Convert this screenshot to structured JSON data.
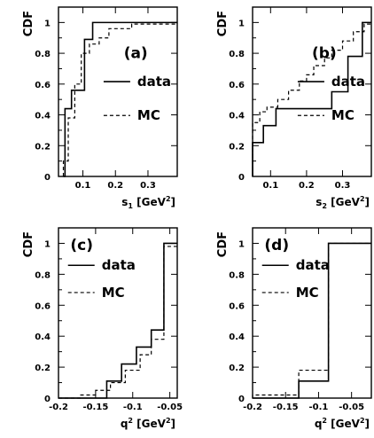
{
  "chart_data": [
    {
      "type": "line",
      "panel_label": "(a)",
      "ylabel": "CDF",
      "xlabel": "s",
      "xlabel_sub": "1",
      "xlabel_unit": "[GeV",
      "xlabel_sup": "2",
      "xlabel_close": "]",
      "xlim": [
        0.025,
        0.39
      ],
      "ylim": [
        0,
        1.1
      ],
      "xticks": [
        0.1,
        0.2,
        0.3
      ],
      "xtick_labels": [
        "0.1",
        "0.2",
        "0.3"
      ],
      "yticks": [
        0,
        0.2,
        0.4,
        0.6,
        0.8,
        1
      ],
      "ytick_labels": [
        "0",
        "0.2",
        "0.4",
        "0.6",
        "0.8",
        "1"
      ],
      "legend_position": "middle-right",
      "series": [
        {
          "name": "data",
          "style": "solid",
          "x": [
            0.04,
            0.045,
            0.065,
            0.105,
            0.13,
            0.39
          ],
          "y": [
            0,
            0.44,
            0.56,
            0.89,
            1,
            1
          ]
        },
        {
          "name": "MC",
          "style": "dashed",
          "x": [
            0.04,
            0.055,
            0.075,
            0.095,
            0.12,
            0.15,
            0.18,
            0.25,
            0.39
          ],
          "y": [
            0.1,
            0.38,
            0.6,
            0.8,
            0.86,
            0.9,
            0.96,
            0.99,
            1
          ]
        }
      ]
    },
    {
      "type": "line",
      "panel_label": "(b)",
      "ylabel": "CDF",
      "xlabel": "s",
      "xlabel_sub": "2",
      "xlabel_unit": "[GeV",
      "xlabel_sup": "2",
      "xlabel_close": "]",
      "xlim": [
        0.05,
        0.38
      ],
      "ylim": [
        0,
        1.1
      ],
      "xticks": [
        0.1,
        0.2,
        0.3
      ],
      "xtick_labels": [
        "0.1",
        "0.2",
        "0.3"
      ],
      "yticks": [
        0,
        0.2,
        0.4,
        0.6,
        0.8,
        1
      ],
      "ytick_labels": [
        "0",
        "0.2",
        "0.4",
        "0.6",
        "0.8",
        "1"
      ],
      "legend_position": "middle-right",
      "series": [
        {
          "name": "data",
          "style": "solid",
          "x": [
            0.05,
            0.08,
            0.115,
            0.27,
            0.315,
            0.355,
            0.38
          ],
          "y": [
            0.22,
            0.33,
            0.44,
            0.55,
            0.78,
            1,
            1
          ]
        },
        {
          "name": "MC",
          "style": "dashed",
          "x": [
            0.05,
            0.07,
            0.09,
            0.12,
            0.15,
            0.18,
            0.2,
            0.22,
            0.25,
            0.27,
            0.3,
            0.33,
            0.36,
            0.38
          ],
          "y": [
            0.35,
            0.42,
            0.45,
            0.5,
            0.56,
            0.62,
            0.66,
            0.72,
            0.77,
            0.82,
            0.88,
            0.94,
            0.99,
            1
          ]
        }
      ]
    },
    {
      "type": "line",
      "panel_label": "(c)",
      "ylabel": "CDF",
      "xlabel": "q",
      "xlabel_sub": "",
      "xlabel_unit": "[GeV",
      "xlabel_sup": "2",
      "xlabel_close": "]",
      "xlabel_q_sup": "2",
      "xlim": [
        -0.2,
        -0.04
      ],
      "ylim": [
        0,
        1.1
      ],
      "xticks": [
        -0.2,
        -0.15,
        -0.1,
        -0.05
      ],
      "xtick_labels": [
        "-0.2",
        "-0.15",
        "-0.1",
        "-0.05"
      ],
      "yticks": [
        0,
        0.2,
        0.4,
        0.6,
        0.8,
        1
      ],
      "ytick_labels": [
        "0",
        "0.2",
        "0.4",
        "0.6",
        "0.8",
        "1"
      ],
      "legend_position": "top-left",
      "series": [
        {
          "name": "data",
          "style": "solid",
          "x": [
            -0.2,
            -0.155,
            -0.135,
            -0.115,
            -0.095,
            -0.075,
            -0.058,
            -0.045,
            -0.04
          ],
          "y": [
            0,
            0,
            0.11,
            0.22,
            0.33,
            0.44,
            1,
            1,
            1
          ]
        },
        {
          "name": "MC",
          "style": "dashed",
          "x": [
            -0.2,
            -0.17,
            -0.15,
            -0.13,
            -0.11,
            -0.09,
            -0.075,
            -0.058,
            -0.04
          ],
          "y": [
            0,
            0.02,
            0.05,
            0.1,
            0.18,
            0.28,
            0.38,
            0.98,
            1
          ]
        }
      ]
    },
    {
      "type": "line",
      "panel_label": "(d)",
      "ylabel": "CDF",
      "xlabel": "q",
      "xlabel_sub": "",
      "xlabel_unit": "[GeV",
      "xlabel_sup": "2",
      "xlabel_close": "]",
      "xlabel_q_sup": "2",
      "xlim": [
        -0.2,
        -0.02
      ],
      "ylim": [
        0,
        1.1
      ],
      "xticks": [
        -0.2,
        -0.15,
        -0.1,
        -0.05
      ],
      "xtick_labels": [
        "-0.2",
        "-0.15",
        "-0.1",
        "-0.05"
      ],
      "yticks": [
        0,
        0.2,
        0.4,
        0.6,
        0.8,
        1
      ],
      "ytick_labels": [
        "0",
        "0.2",
        "0.4",
        "0.6",
        "0.8",
        "1"
      ],
      "legend_position": "top-left",
      "series": [
        {
          "name": "data",
          "style": "solid",
          "x": [
            -0.2,
            -0.13,
            -0.085,
            -0.02
          ],
          "y": [
            0,
            0.11,
            1,
            1
          ]
        },
        {
          "name": "MC",
          "style": "dashed",
          "x": [
            -0.2,
            -0.13,
            -0.085,
            -0.02
          ],
          "y": [
            0.02,
            0.18,
            1,
            1
          ]
        }
      ]
    }
  ]
}
